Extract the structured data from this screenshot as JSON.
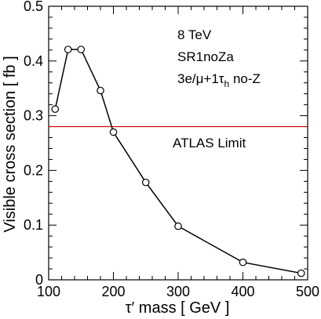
{
  "chart_data": {
    "type": "line",
    "xlabel": "τ′ mass  [ GeV ]",
    "ylabel": "Visible cross section [ fb ]",
    "xlim": [
      100,
      500
    ],
    "ylim": [
      0,
      0.5
    ],
    "x_ticks": [
      "100",
      "200",
      "300",
      "400",
      "500"
    ],
    "y_ticks": [
      "0",
      "0.1",
      "0.2",
      "0.3",
      "0.4",
      "0.5"
    ],
    "series": [
      {
        "x": [
          110,
          130,
          150,
          180,
          200,
          250,
          300,
          400,
          490
        ],
        "y": [
          0.312,
          0.421,
          0.421,
          0.346,
          0.27,
          0.178,
          0.098,
          0.032,
          0.012
        ],
        "color": "#000000",
        "marker": "open-circle"
      }
    ],
    "limit_line": {
      "label": "ATLAS Limit",
      "y": 0.28,
      "color": "#cc0000"
    },
    "annotations": [
      "8 TeV",
      "SR1noZa",
      "3e/μ+1τh no-Z"
    ],
    "grid": false
  }
}
